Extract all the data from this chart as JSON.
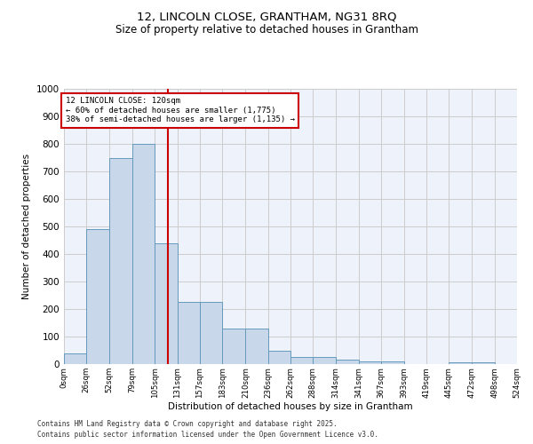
{
  "title_line1": "12, LINCOLN CLOSE, GRANTHAM, NG31 8RQ",
  "title_line2": "Size of property relative to detached houses in Grantham",
  "xlabel": "Distribution of detached houses by size in Grantham",
  "ylabel": "Number of detached properties",
  "bar_heights": [
    40,
    490,
    750,
    800,
    440,
    225,
    225,
    130,
    130,
    50,
    25,
    25,
    15,
    10,
    10,
    0,
    0,
    5,
    5,
    0
  ],
  "bin_edges": [
    0,
    26,
    52,
    79,
    105,
    131,
    157,
    183,
    210,
    236,
    262,
    288,
    314,
    341,
    367,
    393,
    419,
    445,
    472,
    498,
    524
  ],
  "bar_color": "#c8d8ea",
  "bar_edge_color": "#6699bb",
  "property_size": 120,
  "annotation_title": "12 LINCOLN CLOSE: 120sqm",
  "annotation_line2": "← 60% of detached houses are smaller (1,775)",
  "annotation_line3": "38% of semi-detached houses are larger (1,135) →",
  "annotation_box_color": "#cc0000",
  "vline_color": "#cc0000",
  "ylim": [
    0,
    1000
  ],
  "yticks": [
    0,
    100,
    200,
    300,
    400,
    500,
    600,
    700,
    800,
    900,
    1000
  ],
  "grid_color": "#cccccc",
  "bg_color": "#eef2fb",
  "footnote1": "Contains HM Land Registry data © Crown copyright and database right 2025.",
  "footnote2": "Contains public sector information licensed under the Open Government Licence v3.0."
}
